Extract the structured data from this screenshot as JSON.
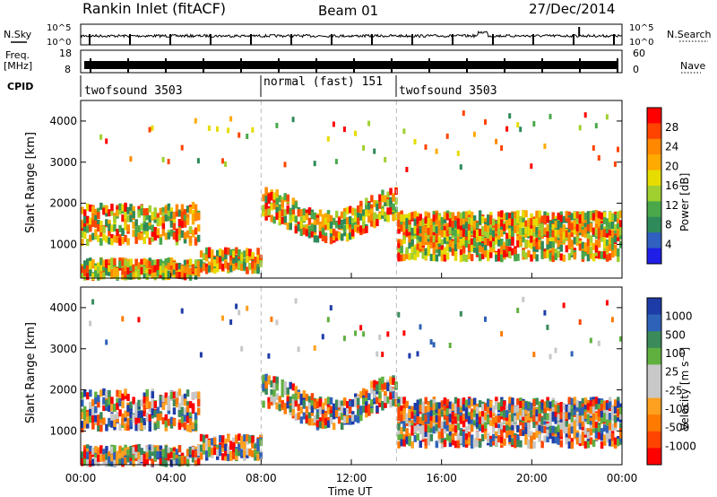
{
  "header": {
    "station": "Rankin Inlet (fitACF)",
    "beam": "Beam 01",
    "date": "27/Dec/2014"
  },
  "left_labels": {
    "nsky": "N.Sky",
    "freq_line1": "Freq.",
    "freq_line2": "[MHz]",
    "cpid": "CPID"
  },
  "right_labels": {
    "nsearch": "N.Search",
    "nave": "Nave"
  },
  "chart_data": [
    {
      "type": "line",
      "name": "noise",
      "left_ticks": [
        "10^5",
        "10^0"
      ],
      "right_ticks": [
        "10^5",
        "10^0"
      ]
    },
    {
      "type": "line",
      "name": "freq_nave",
      "left_ticks": [
        "18",
        "8"
      ],
      "right_ticks": [
        "60",
        "0"
      ]
    },
    {
      "type": "table",
      "name": "cpid",
      "segments": [
        {
          "start": 0,
          "end": 8,
          "label": "twofsound 3503"
        },
        {
          "start": 8,
          "end": 14,
          "label": "normal (fast) 151"
        },
        {
          "start": 14,
          "end": 24,
          "label": "twofsound 3503"
        }
      ]
    },
    {
      "type": "heatmap",
      "name": "power",
      "ylabel": "Slant Range [km]",
      "yticks": [
        1000,
        2000,
        3000,
        4000
      ],
      "ylim": [
        180,
        4500
      ],
      "colorbar_label": "Power [dB]",
      "colorbar_ticks": [
        "28",
        "24",
        "20",
        "16",
        "12",
        "8",
        "4"
      ],
      "colorbar_colors": [
        "#ff0000",
        "#ff4400",
        "#ff8800",
        "#ffaa00",
        "#e6dc00",
        "#9fd030",
        "#4aa84a",
        "#2e8a5a",
        "#3060c0",
        "#1e1ee6"
      ]
    },
    {
      "type": "heatmap",
      "name": "velocity",
      "ylabel": "Slant Range [km]",
      "yticks": [
        1000,
        2000,
        3000,
        4000
      ],
      "ylim": [
        180,
        4500
      ],
      "colorbar_label": "Velocity [m s⁻¹]",
      "colorbar_ticks": [
        "1000",
        "500",
        "100",
        "25",
        "-25",
        "-100",
        "-500",
        "-1000"
      ],
      "colorbar_colors": [
        "#1e3ca8",
        "#2e62b8",
        "#3a8a5a",
        "#60b040",
        "#c8c8c8",
        "#c8c8c8",
        "#ffa020",
        "#ff7a00",
        "#ff4400",
        "#ff0000"
      ],
      "xlabel": "Time UT",
      "xticks": [
        "00:00",
        "04:00",
        "08:00",
        "12:00",
        "16:00",
        "20:00",
        "00:00"
      ],
      "xlim": [
        0,
        24
      ]
    }
  ]
}
